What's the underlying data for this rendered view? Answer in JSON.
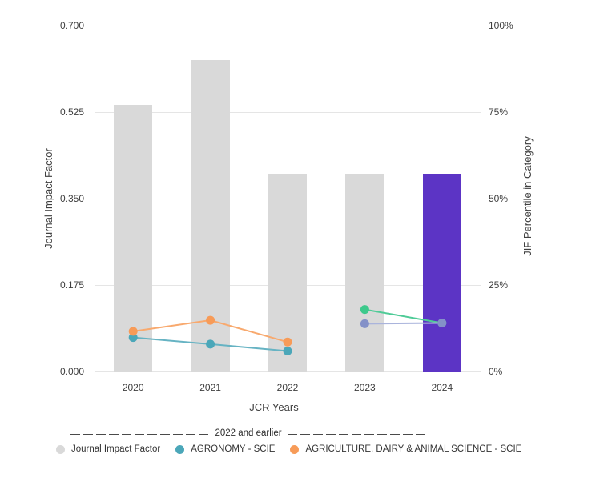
{
  "chart_data": {
    "type": "bar",
    "categories": [
      "2020",
      "2021",
      "2022",
      "2023",
      "2024"
    ],
    "xlabel": "JCR Years",
    "left_axis": {
      "title": "Journal Impact Factor",
      "ticks": [
        "0.700",
        "0.525",
        "0.350",
        "0.175",
        "0.000"
      ],
      "min": 0,
      "max": 0.7
    },
    "right_axis": {
      "title": "JIF Percentile in Category",
      "ticks": [
        "100%",
        "75%",
        "50%",
        "25%",
        "0%"
      ],
      "min": 0,
      "max": 100
    },
    "grid": true,
    "legend_position": "bottom",
    "bar_series": {
      "name": "Journal Impact Factor",
      "values": [
        0.54,
        0.63,
        0.4,
        0.4,
        0.4
      ],
      "colors": [
        "#D9D9D9",
        "#D9D9D9",
        "#D9D9D9",
        "#D9D9D9",
        "#5C34C5"
      ]
    },
    "line_series": [
      {
        "id": "agronomy-scie",
        "legend_label": "AGRONOMY - SCIE",
        "dot_color": "#4BA7B9",
        "line_color": "#66B3C3",
        "points": [
          {
            "x": "2020",
            "y": 9.8
          },
          {
            "x": "2021",
            "y": 7.9
          },
          {
            "x": "2022",
            "y": 5.9
          }
        ]
      },
      {
        "id": "agriculture-dairy-animal-science-scie",
        "legend_label": "AGRICULTURE, DAIRY & ANIMAL SCIENCE - SCIE",
        "dot_color": "#F79B58",
        "line_color": "#F8A96E",
        "points": [
          {
            "x": "2020",
            "y": 11.6
          },
          {
            "x": "2021",
            "y": 14.8
          },
          {
            "x": "2022",
            "y": 8.5
          }
        ]
      },
      {
        "id": "unlabeled-green-series",
        "legend_label": "",
        "dot_color": "#3DC98C",
        "line_color": "#4FCB97",
        "points": [
          {
            "x": "2023",
            "y": 17.9
          },
          {
            "x": "2024",
            "y": 14.0
          }
        ]
      },
      {
        "id": "unlabeled-slate-series",
        "legend_label": "",
        "dot_color": "#8491C8",
        "line_color": "#AAB4DC",
        "points": [
          {
            "x": "2023",
            "y": 13.8
          },
          {
            "x": "2024",
            "y": 14.0
          }
        ]
      }
    ]
  },
  "legend": {
    "divider_label": "2022 and earlier",
    "items": [
      {
        "label": "Journal Impact Factor",
        "color": "#D9D9D9"
      },
      {
        "label": "AGRONOMY - SCIE",
        "color": "#4BA7B9"
      },
      {
        "label": "AGRICULTURE, DAIRY & ANIMAL SCIENCE - SCIE",
        "color": "#F79B58"
      }
    ]
  }
}
